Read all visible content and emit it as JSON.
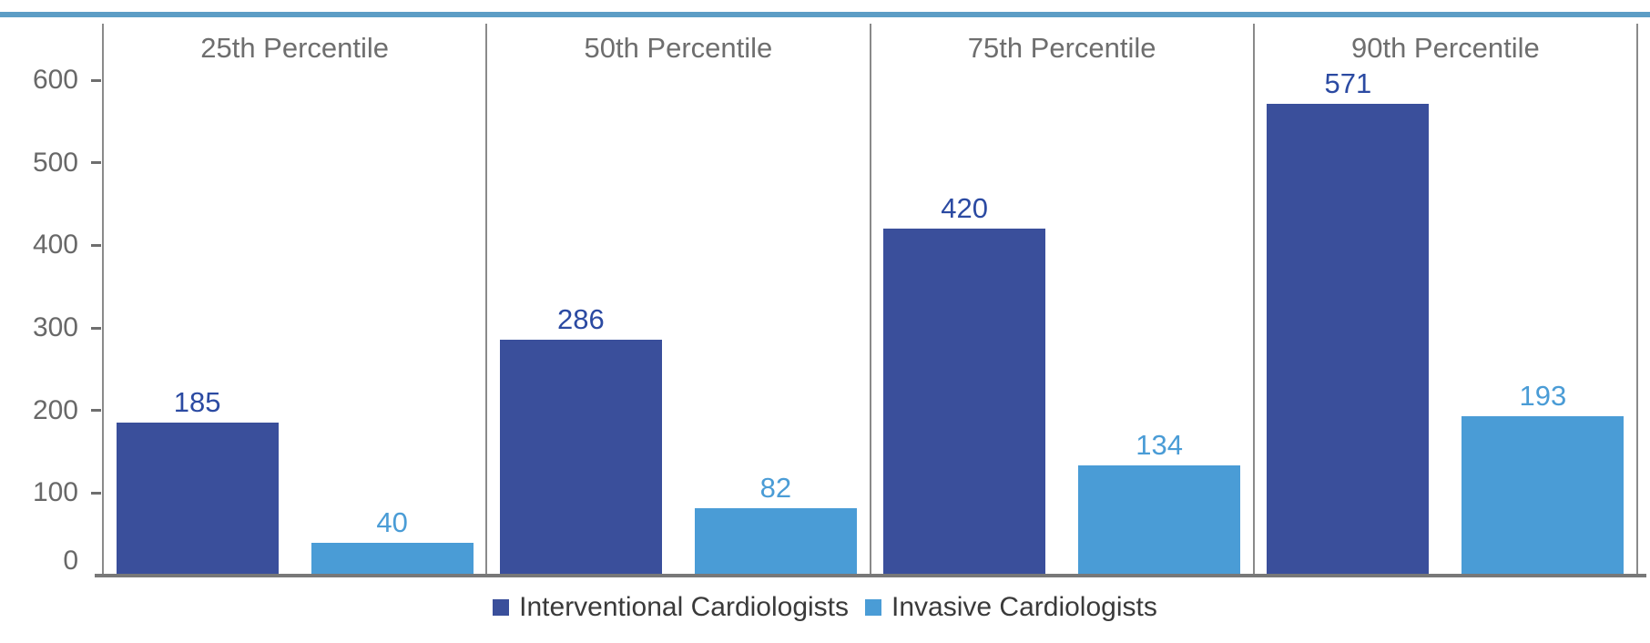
{
  "figure": {
    "top_rule_color": "#5C9DC5",
    "background": "#FFFFFF",
    "axis_line_color": "#8a8a8a",
    "baseline_color": "#787878",
    "text_gray": "#6e6e6e"
  },
  "chart_data": {
    "type": "bar",
    "title": "",
    "xlabel": "",
    "ylabel": "",
    "categories": [
      "25th Percentile",
      "50th Percentile",
      "75th Percentile",
      "90th Percentile"
    ],
    "series": [
      {
        "name": "Interventional Cardiologists",
        "color": "#3A4F9B",
        "label_color": "#2B4AA2",
        "values": [
          185,
          286,
          420,
          571
        ]
      },
      {
        "name": "Invasive Cardiologists",
        "color": "#4A9CD6",
        "label_color": "#4A9CD6",
        "values": [
          40,
          82,
          134,
          193
        ]
      }
    ],
    "ylim": [
      0,
      600
    ],
    "y_ticks": [
      0,
      100,
      200,
      300,
      400,
      500,
      600
    ],
    "grid": "off",
    "legend_position": "bottom",
    "value_labels": "above-bars",
    "panel_layout": "4 side-by-side panels separated by vertical gray lines"
  }
}
